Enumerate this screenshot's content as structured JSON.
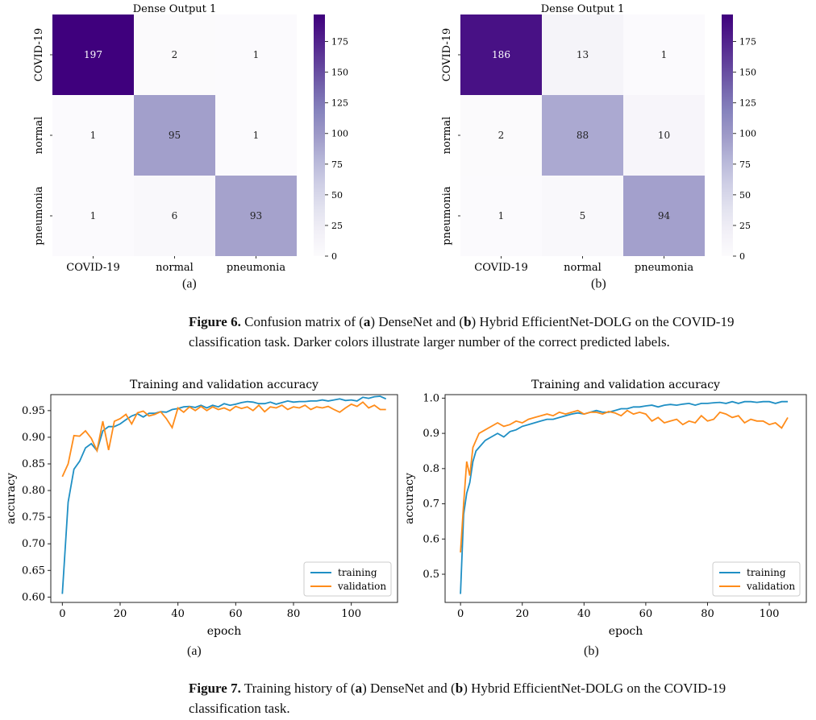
{
  "figure6": {
    "panel_a_label": "(a)",
    "panel_b_label": "(b)",
    "caption": {
      "fig_label": "Figure 6.",
      "pre_a": "Confusion matrix of (",
      "a": "a",
      "mid": ") DenseNet and (",
      "b": "b",
      "post": ") Hybrid EfficientNet-DOLG on the COVID-19",
      "line2": "classification task. Darker colors illustrate larger number of the correct predicted labels."
    }
  },
  "figure7": {
    "panel_a_label": "(a)",
    "panel_b_label": "(b)",
    "caption": {
      "fig_label": "Figure 7.",
      "pre_a": "Training history of (",
      "a": "a",
      "mid": ") DenseNet and (",
      "b": "b",
      "post": ") Hybrid EfficientNet-DOLG on the COVID-19",
      "line2": "classification task."
    }
  },
  "chart_data": [
    {
      "type": "heatmap",
      "title": "Dense Output 1",
      "row_labels": [
        "COVID-19",
        "normal",
        "pneumonia"
      ],
      "col_labels": [
        "COVID-19",
        "normal",
        "pneumonia"
      ],
      "values": [
        [
          197,
          2,
          1
        ],
        [
          1,
          95,
          1
        ],
        [
          1,
          6,
          93
        ]
      ],
      "colorbar_ticks": [
        0,
        25,
        50,
        75,
        100,
        125,
        150,
        175
      ],
      "vmin": 0,
      "vmax": 197,
      "colormap": [
        "#fcfbfd",
        "#3f007d"
      ]
    },
    {
      "type": "heatmap",
      "title": "Dense Output 1",
      "row_labels": [
        "COVID-19",
        "normal",
        "pneumonia"
      ],
      "col_labels": [
        "COVID-19",
        "normal",
        "pneumonia"
      ],
      "values": [
        [
          186,
          13,
          1
        ],
        [
          2,
          88,
          10
        ],
        [
          1,
          5,
          94
        ]
      ],
      "colorbar_ticks": [
        0,
        25,
        50,
        75,
        100,
        125,
        150,
        175
      ],
      "vmin": 0,
      "vmax": 197,
      "colormap": [
        "#fcfbfd",
        "#3f007d"
      ]
    },
    {
      "type": "line",
      "title": "Training and validation accuracy",
      "xlabel": "epoch",
      "ylabel": "accuracy",
      "xlim": [
        -4,
        116
      ],
      "ylim": [
        0.59,
        0.98
      ],
      "xticks": [
        0,
        20,
        40,
        60,
        80,
        100
      ],
      "yticks": [
        "0.60",
        "0.65",
        "0.70",
        "0.75",
        "0.80",
        "0.85",
        "0.90",
        "0.95"
      ],
      "legend": "lower-right",
      "series": [
        {
          "name": "training",
          "color": "#1f8fc4",
          "x": [
            0,
            2,
            4,
            6,
            8,
            10,
            12,
            14,
            16,
            18,
            20,
            22,
            24,
            26,
            28,
            30,
            32,
            34,
            36,
            38,
            40,
            42,
            44,
            46,
            48,
            50,
            52,
            54,
            56,
            58,
            60,
            62,
            64,
            66,
            68,
            70,
            72,
            74,
            76,
            78,
            80,
            82,
            84,
            86,
            88,
            90,
            92,
            94,
            96,
            98,
            100,
            102,
            104,
            106,
            108,
            110,
            112
          ],
          "y": [
            0.606,
            0.778,
            0.84,
            0.855,
            0.88,
            0.888,
            0.875,
            0.912,
            0.92,
            0.92,
            0.925,
            0.933,
            0.94,
            0.944,
            0.938,
            0.945,
            0.945,
            0.948,
            0.947,
            0.952,
            0.954,
            0.957,
            0.958,
            0.956,
            0.96,
            0.955,
            0.96,
            0.957,
            0.963,
            0.96,
            0.962,
            0.965,
            0.967,
            0.966,
            0.963,
            0.963,
            0.966,
            0.962,
            0.965,
            0.968,
            0.966,
            0.967,
            0.967,
            0.968,
            0.968,
            0.97,
            0.968,
            0.97,
            0.972,
            0.969,
            0.97,
            0.968,
            0.975,
            0.973,
            0.976,
            0.977,
            0.972
          ]
        },
        {
          "name": "validation",
          "color": "#ff8c1a",
          "x": [
            0,
            2,
            4,
            6,
            8,
            10,
            12,
            14,
            16,
            18,
            20,
            22,
            24,
            26,
            28,
            30,
            32,
            34,
            36,
            38,
            40,
            42,
            44,
            46,
            48,
            50,
            52,
            54,
            56,
            58,
            60,
            62,
            64,
            66,
            68,
            70,
            72,
            74,
            76,
            78,
            80,
            82,
            84,
            86,
            88,
            90,
            92,
            94,
            96,
            98,
            100,
            102,
            104,
            106,
            108,
            110,
            112
          ],
          "y": [
            0.826,
            0.85,
            0.903,
            0.902,
            0.912,
            0.898,
            0.875,
            0.93,
            0.876,
            0.93,
            0.935,
            0.943,
            0.925,
            0.946,
            0.949,
            0.94,
            0.943,
            0.948,
            0.935,
            0.918,
            0.955,
            0.947,
            0.957,
            0.95,
            0.958,
            0.95,
            0.957,
            0.952,
            0.955,
            0.95,
            0.958,
            0.954,
            0.957,
            0.95,
            0.96,
            0.948,
            0.957,
            0.955,
            0.96,
            0.952,
            0.957,
            0.955,
            0.96,
            0.952,
            0.957,
            0.955,
            0.958,
            0.952,
            0.947,
            0.955,
            0.962,
            0.958,
            0.966,
            0.955,
            0.96,
            0.952,
            0.952
          ]
        }
      ]
    },
    {
      "type": "line",
      "title": "Training and validation accuracy",
      "xlabel": "epoch",
      "ylabel": "accuracy",
      "xlim": [
        -5,
        112
      ],
      "ylim": [
        0.42,
        1.01
      ],
      "xticks": [
        0,
        20,
        40,
        60,
        80,
        100
      ],
      "yticks": [
        "0.5",
        "0.6",
        "0.7",
        "0.8",
        "0.9",
        "1.0"
      ],
      "legend": "lower-right",
      "series": [
        {
          "name": "training",
          "color": "#1f8fc4",
          "x": [
            0,
            1,
            2,
            3,
            4,
            5,
            6,
            8,
            10,
            12,
            14,
            16,
            18,
            20,
            22,
            24,
            26,
            28,
            30,
            32,
            34,
            36,
            38,
            40,
            42,
            44,
            46,
            48,
            50,
            52,
            54,
            56,
            58,
            60,
            62,
            64,
            66,
            68,
            70,
            72,
            74,
            76,
            78,
            80,
            82,
            84,
            86,
            88,
            90,
            92,
            94,
            96,
            98,
            100,
            102,
            104,
            106
          ],
          "y": [
            0.444,
            0.67,
            0.73,
            0.76,
            0.82,
            0.85,
            0.86,
            0.88,
            0.89,
            0.9,
            0.89,
            0.905,
            0.91,
            0.92,
            0.925,
            0.93,
            0.935,
            0.94,
            0.94,
            0.945,
            0.95,
            0.955,
            0.958,
            0.955,
            0.96,
            0.965,
            0.96,
            0.96,
            0.965,
            0.97,
            0.97,
            0.975,
            0.975,
            0.978,
            0.98,
            0.975,
            0.98,
            0.982,
            0.98,
            0.983,
            0.985,
            0.98,
            0.985,
            0.985,
            0.987,
            0.988,
            0.985,
            0.99,
            0.985,
            0.99,
            0.99,
            0.988,
            0.99,
            0.99,
            0.985,
            0.99,
            0.99
          ]
        },
        {
          "name": "validation",
          "color": "#ff8c1a",
          "x": [
            0,
            1,
            2,
            3,
            4,
            5,
            6,
            8,
            10,
            12,
            14,
            16,
            18,
            20,
            22,
            24,
            26,
            28,
            30,
            32,
            34,
            36,
            38,
            40,
            42,
            44,
            46,
            48,
            50,
            52,
            54,
            56,
            58,
            60,
            62,
            64,
            66,
            68,
            70,
            72,
            74,
            76,
            78,
            80,
            82,
            84,
            86,
            88,
            90,
            92,
            94,
            96,
            98,
            100,
            102,
            104,
            106
          ],
          "y": [
            0.562,
            0.7,
            0.82,
            0.78,
            0.86,
            0.88,
            0.9,
            0.91,
            0.92,
            0.93,
            0.92,
            0.925,
            0.935,
            0.93,
            0.94,
            0.945,
            0.95,
            0.955,
            0.95,
            0.96,
            0.955,
            0.96,
            0.965,
            0.955,
            0.96,
            0.96,
            0.955,
            0.962,
            0.958,
            0.95,
            0.965,
            0.955,
            0.96,
            0.955,
            0.935,
            0.945,
            0.93,
            0.935,
            0.94,
            0.925,
            0.935,
            0.93,
            0.95,
            0.935,
            0.94,
            0.96,
            0.955,
            0.945,
            0.95,
            0.93,
            0.94,
            0.935,
            0.935,
            0.925,
            0.93,
            0.915,
            0.945
          ]
        }
      ]
    }
  ]
}
